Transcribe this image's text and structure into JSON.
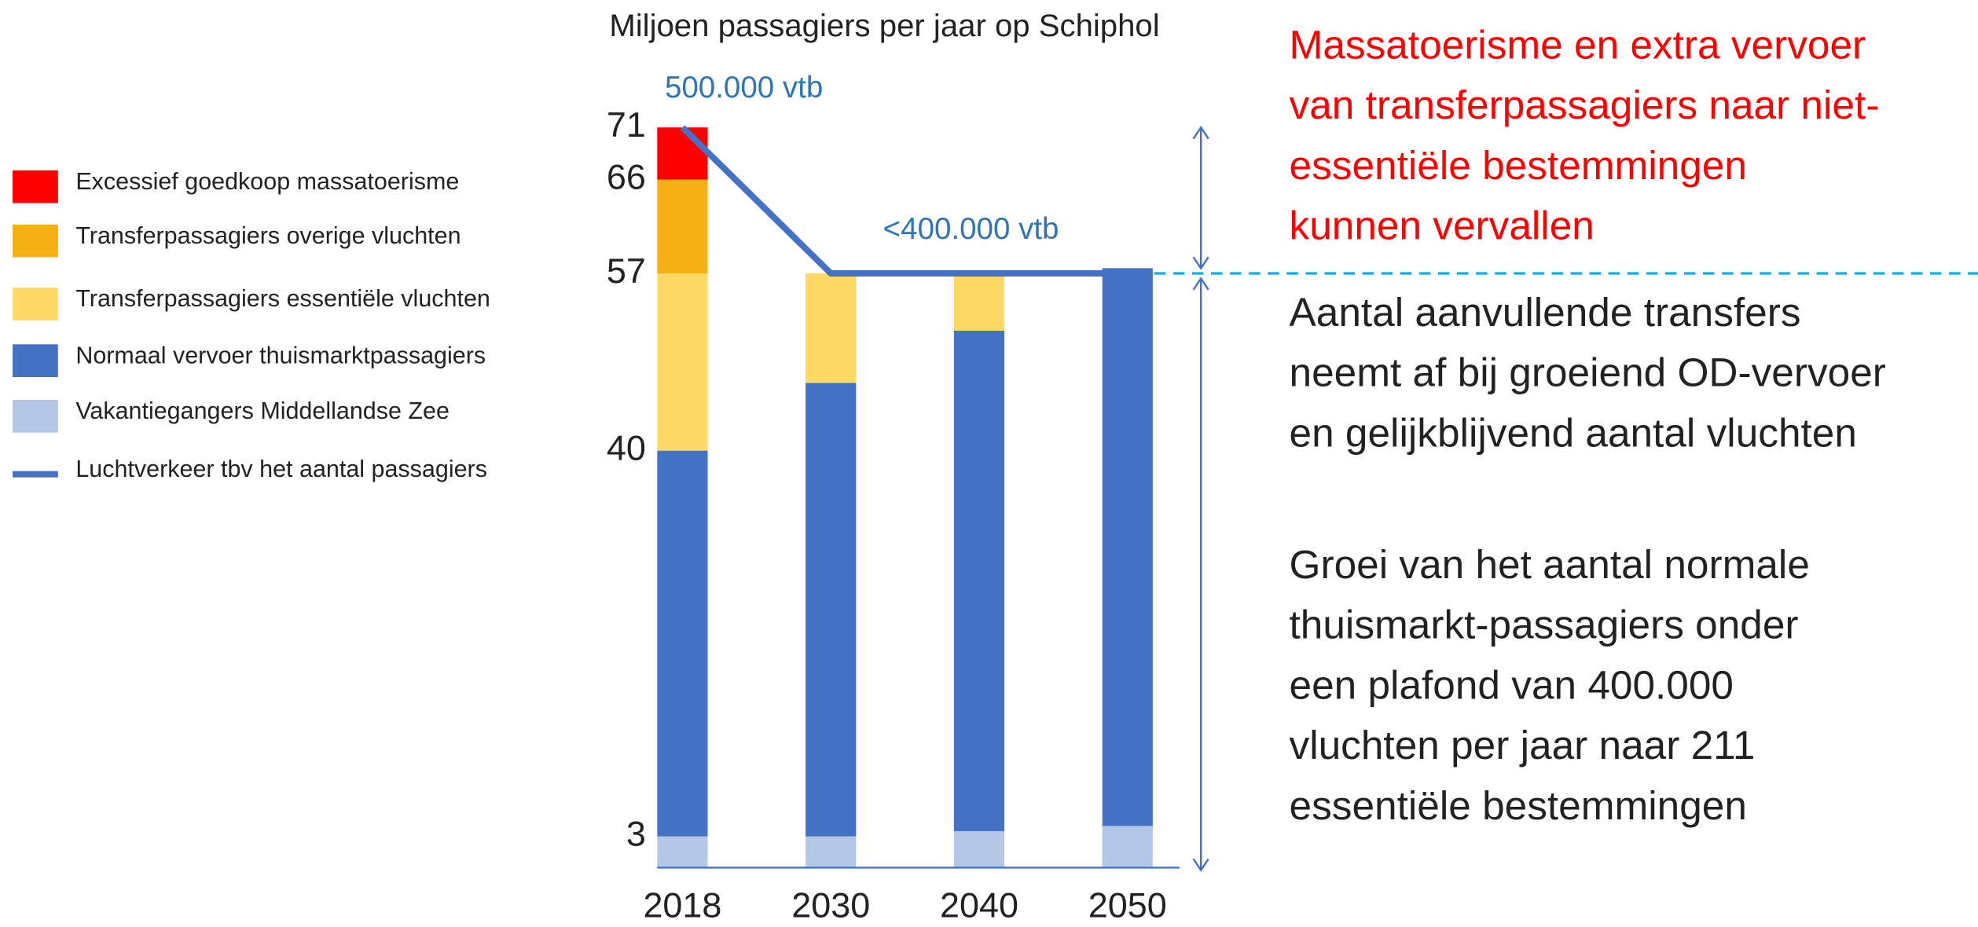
{
  "chart_data": {
    "type": "bar",
    "stacked": true,
    "title": "Miljoen passagiers per jaar op Schiphol",
    "categories": [
      "2018",
      "2030",
      "2040",
      "2050"
    ],
    "ylim": [
      0,
      71
    ],
    "yticks": [
      3,
      40,
      57,
      66,
      71
    ],
    "series": [
      {
        "name": "Excessief goedkoop massatoerisme",
        "color": "#ff0000",
        "values": [
          5,
          null,
          null,
          null
        ]
      },
      {
        "name": "Transferpassagiers overige vluchten",
        "color": "#f5b114",
        "values": [
          9,
          null,
          null,
          null
        ]
      },
      {
        "name": "Transferpassagiers essentiële vluchten",
        "color": "#ffd966",
        "values": [
          17,
          10.5,
          5.5,
          null
        ]
      },
      {
        "name": "Normaal vervoer thuismarktpassagiers",
        "color": "#4472c4",
        "values": [
          37,
          43.5,
          48,
          53.5
        ]
      },
      {
        "name": "Vakantiegangers Middellandse Zee",
        "color": "#b4c7e7",
        "values": [
          3,
          3,
          3.5,
          4
        ]
      },
      {
        "name": "Luchtverkeer tbv het aantal passagiers",
        "type": "line",
        "color": "#4472c4",
        "values": [
          71,
          57,
          57,
          57
        ]
      }
    ],
    "annotations": [
      "500.000 vtb",
      "<400.000 vtb"
    ],
    "notes": {
      "highlight": [
        "Massatoerisme en extra vervoer",
        "van  transferpassagiers naar niet-",
        "essentiële bestemmingen",
        "kunnen vervallen"
      ],
      "paragraphs": [
        [
          "Aantal aanvullende transfers",
          "neemt af bij groeiend OD-vervoer",
          "en gelijkblijvend aantal vluchten"
        ],
        [
          "Groei van het aantal normale",
          "thuismarkt-passagiers onder",
          "een plafond van 400.000",
          "vluchten per jaar naar 211",
          "essentiële bestemmingen"
        ]
      ]
    }
  }
}
